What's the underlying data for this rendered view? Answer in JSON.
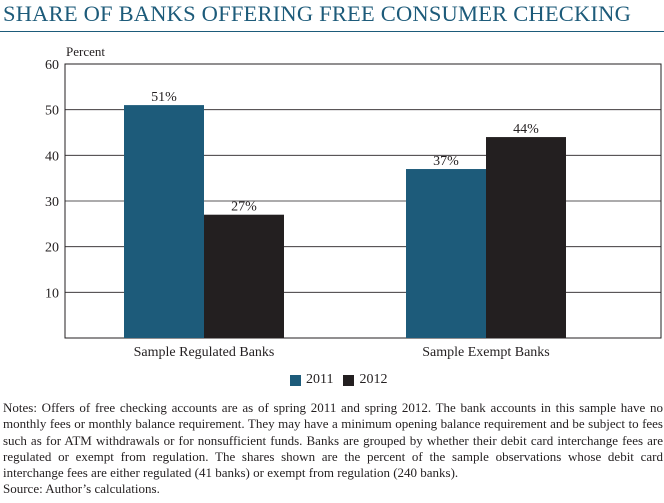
{
  "chart_data": {
    "type": "bar",
    "title": "SHARE OF BANKS OFFERING FREE CONSUMER CHECKING",
    "ylabel": "Percent",
    "xlabel": "",
    "categories": [
      "Sample Regulated Banks",
      "Sample Exempt Banks"
    ],
    "series": [
      {
        "name": "2011",
        "values": [
          51,
          37
        ],
        "labels": [
          "51%",
          "37%"
        ],
        "color": "#1d5b7a"
      },
      {
        "name": "2012",
        "values": [
          27,
          44
        ],
        "labels": [
          "27%",
          "44%"
        ],
        "color": "#231f20"
      }
    ],
    "ylim": [
      0,
      60
    ],
    "yticks": [
      10,
      20,
      30,
      40,
      50,
      60
    ],
    "grid": true,
    "legend_position": "bottom-center"
  },
  "notes": "Notes: Offers of free checking accounts are as of spring 2011 and spring 2012. The bank accounts in this sample have no monthly fees or monthly balance requirement. They may have a minimum opening balance requirement and be subject to fees such as for ATM withdrawals or for nonsufficient funds. Banks are grouped by whether their debit card interchange fees are regulated or exempt from regulation. The shares shown are the percent of the sample observations whose debit card interchange fees are either regulated (41 banks) or exempt from regulation (240 banks).",
  "source": "Source: Author’s calculations."
}
